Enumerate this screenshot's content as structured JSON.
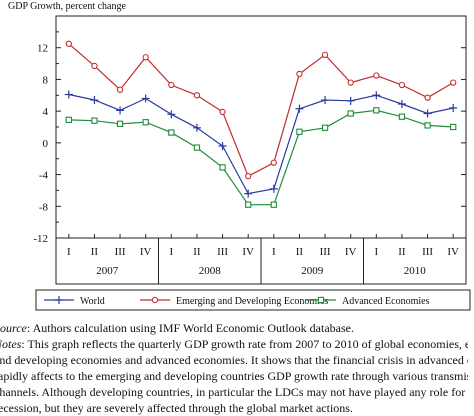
{
  "chart_data": {
    "type": "line",
    "ylabel": "GDP Growth, percent change",
    "ylim": [
      -12,
      16
    ],
    "yticks": [
      -12,
      -8,
      -4,
      0,
      4,
      8,
      12
    ],
    "grid": false,
    "legend_placement": "bottom",
    "quarters": [
      "I",
      "II",
      "III",
      "IV",
      "I",
      "II",
      "III",
      "IV",
      "I",
      "II",
      "III",
      "IV",
      "I",
      "II",
      "III",
      "IV"
    ],
    "years": [
      "2007",
      "2008",
      "2009",
      "2010"
    ],
    "series": [
      {
        "name": "World",
        "color": "#2a3aa0",
        "marker": "plus",
        "values": [
          6.1,
          5.4,
          4.1,
          5.6,
          3.6,
          1.9,
          -0.4,
          -6.4,
          -5.8,
          4.3,
          5.4,
          5.3,
          6.0,
          4.9,
          3.7,
          4.4
        ]
      },
      {
        "name": "Emerging and Developing Economies",
        "color": "#c42c2c",
        "marker": "circle",
        "values": [
          12.5,
          9.7,
          6.7,
          10.8,
          7.3,
          6.0,
          3.9,
          -4.2,
          -2.5,
          8.7,
          11.1,
          7.6,
          8.5,
          7.3,
          5.7,
          7.6
        ]
      },
      {
        "name": "Advanced Economies",
        "color": "#1e8c3a",
        "marker": "square",
        "values": [
          2.9,
          2.8,
          2.4,
          2.6,
          1.3,
          -0.6,
          -3.1,
          -7.8,
          -7.8,
          1.4,
          1.9,
          3.7,
          4.1,
          3.3,
          2.2,
          2.0
        ]
      }
    ]
  },
  "notes": {
    "source_label": "Source",
    "source_text": ": Authors calculation using IMF World Economic Outlook database.",
    "notes_label": "Notes",
    "notes_line1": ": This graph reflects the quarterly GDP growth rate from 2007 to 2010 of global economies, emerging",
    "notes_line2": "and developing economies and advanced economies. It shows that the financial crisis in advanced economies",
    "notes_line3": "rapidly affects to the emerging and developing countries GDP growth rate through various transmission",
    "notes_line4": "channels. Although developing countries, in particular the LDCs may not have played any role for this",
    "notes_line5": "recession, but they are severely affected through the global market actions."
  }
}
